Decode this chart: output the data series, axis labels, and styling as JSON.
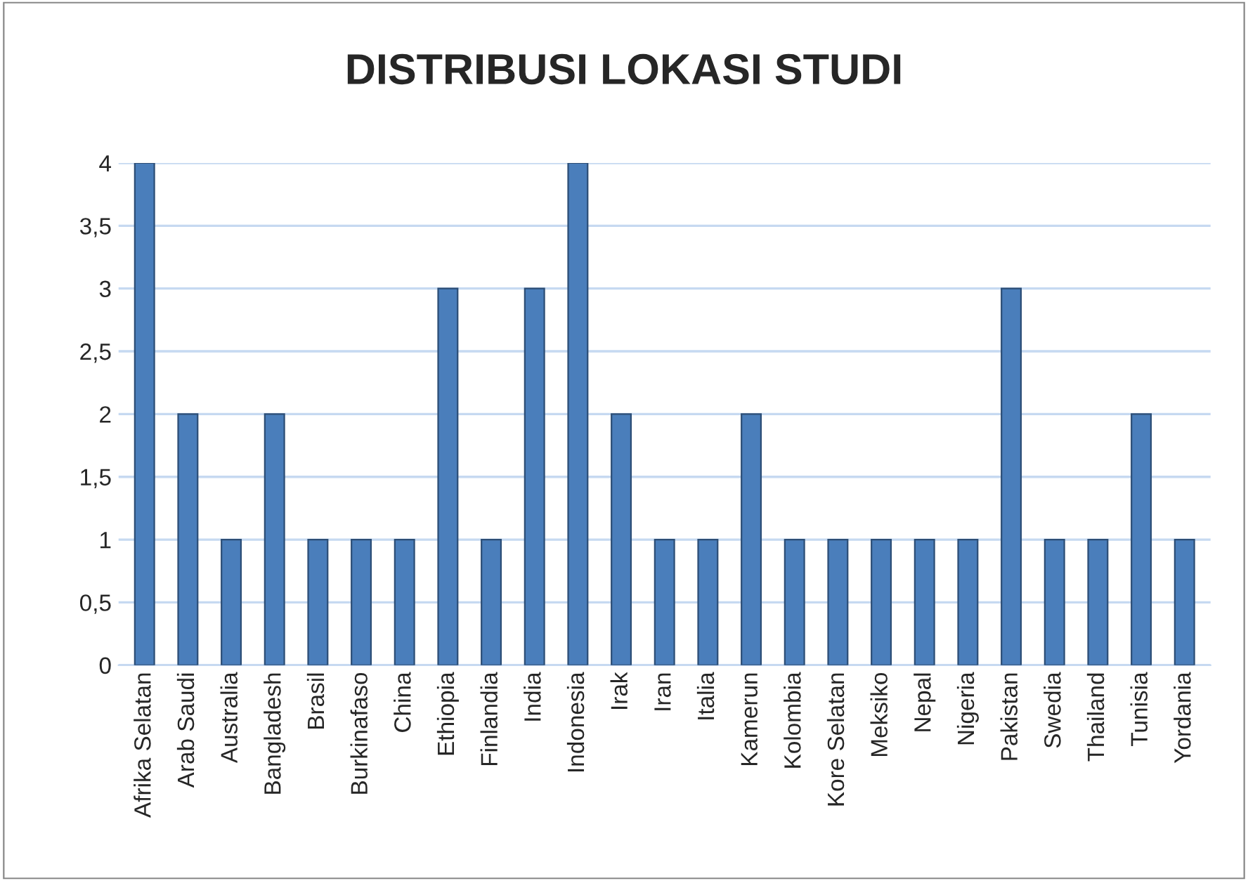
{
  "chart_data": {
    "type": "bar",
    "title": "DISTRIBUSI LOKASI STUDI",
    "categories": [
      "Afrika Selatan",
      "Arab Saudi",
      "Australia",
      "Bangladesh",
      "Brasil",
      "Burkinafaso",
      "China",
      "Ethiopia",
      "Finlandia",
      "India",
      "Indonesia",
      "Irak",
      "Iran",
      "Italia",
      "Kamerun",
      "Kolombia",
      "Kore Selatan",
      "Meksiko",
      "Nepal",
      "Nigeria",
      "Pakistan",
      "Swedia",
      "Thailand",
      "Tunisia",
      "Yordania"
    ],
    "values": [
      4,
      2,
      1,
      2,
      1,
      1,
      1,
      3,
      1,
      3,
      4,
      2,
      1,
      1,
      2,
      1,
      1,
      1,
      1,
      1,
      3,
      1,
      1,
      2,
      1
    ],
    "color": "#4a7ebb",
    "ylim": [
      0,
      4
    ],
    "yticks": [
      0,
      {
        "value": 0.5,
        "label": "0,5"
      },
      1,
      {
        "value": 1.5,
        "label": "1,5"
      },
      2,
      {
        "value": 2.5,
        "label": "2,5"
      },
      3,
      {
        "value": 3.5,
        "label": "3,5"
      },
      4
    ],
    "grid": "y"
  }
}
